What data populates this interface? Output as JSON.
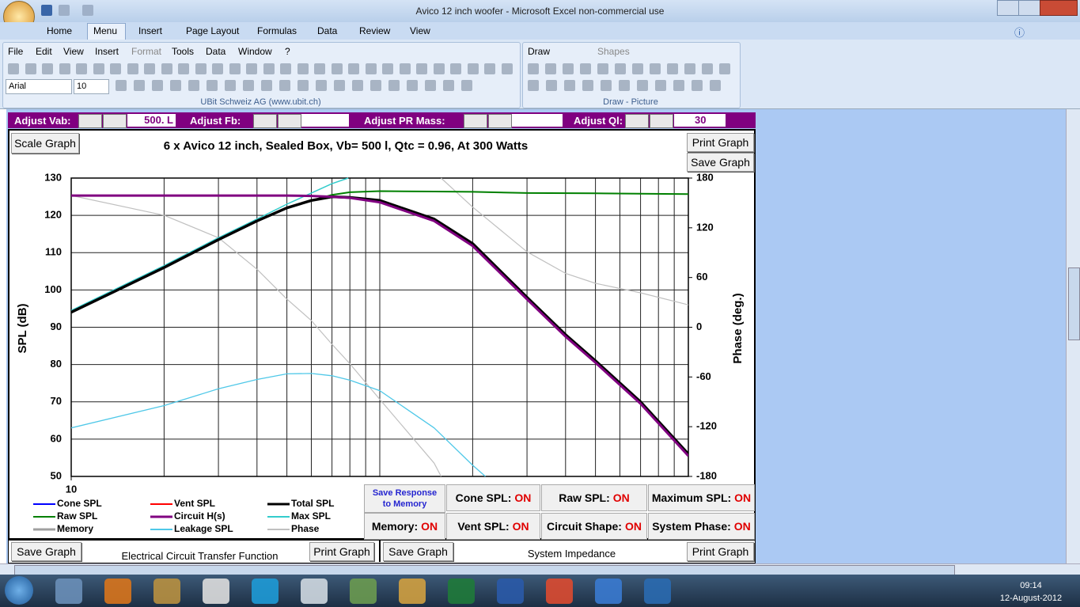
{
  "window": {
    "title": "Avico 12 inch woofer - Microsoft Excel non-commercial use"
  },
  "ribbon": {
    "tabs": [
      "Home",
      "Menu",
      "Insert",
      "Page Layout",
      "Formulas",
      "Data",
      "Review",
      "View"
    ],
    "menus": [
      "File",
      "Edit",
      "View",
      "Insert",
      "Format",
      "Tools",
      "Data",
      "Window",
      "?"
    ],
    "font": "Arial",
    "size": "10",
    "group_label": "UBit Schweiz AG   (www.ubit.ch)",
    "draw": "Draw",
    "shapes": "Shapes",
    "draw_label": "Draw - Picture"
  },
  "controls": {
    "labels": [
      "Adjust Vab:",
      "Adjust Fb:",
      "Adjust PR Mass:",
      "Adjust Ql:"
    ],
    "vab": "500. L",
    "ql": "30"
  },
  "buttons": {
    "scale": "Scale Graph",
    "print": "Print Graph",
    "save": "Save Graph",
    "memory": "Save Response to Memory"
  },
  "toggles": [
    {
      "label": "Cone SPL:",
      "state": "ON"
    },
    {
      "label": "Raw SPL:",
      "state": "ON"
    },
    {
      "label": "Maximum SPL:",
      "state": "ON"
    },
    {
      "label": "Memory:",
      "state": "ON"
    },
    {
      "label": "Vent SPL:",
      "state": "ON"
    },
    {
      "label": "Circuit Shape:",
      "state": "ON"
    },
    {
      "label": "System Phase:",
      "state": "ON"
    }
  ],
  "bottom": {
    "save_left": "Save Graph",
    "circuit": "Electrical Circuit Transfer Function",
    "print_left": "Print Graph",
    "save_right": "Save Graph",
    "impedance": "System Impedance",
    "print_right": "Print Graph"
  },
  "taskbar": {
    "time": "09:14",
    "date": "12-August-2012"
  },
  "chart_data": {
    "type": "line",
    "title": "6 x Avico  12 inch,  Sealed Box, Vb= 500 l,  Qtc = 0.96,  At 300 Watts",
    "y_label": "SPL (dB)",
    "y2_label": "Phase (deg.)",
    "xscale": "log",
    "xlim": [
      10,
      1000
    ],
    "xticks": [
      10
    ],
    "xgrid": [
      20,
      30,
      40,
      50,
      60,
      70,
      80,
      90,
      100,
      200,
      300,
      400,
      500,
      600,
      700,
      800,
      900
    ],
    "ylim": [
      50,
      130
    ],
    "yticks": [
      50,
      60,
      70,
      80,
      90,
      100,
      110,
      120,
      130
    ],
    "y2lim": [
      -180,
      180
    ],
    "y2ticks": [
      -180,
      -120,
      -60,
      0,
      60,
      120,
      180
    ],
    "grid": true,
    "series": [
      {
        "name": "Cone SPL",
        "color": "#0000ff",
        "width": 2,
        "x": [],
        "values": []
      },
      {
        "name": "Vent SPL",
        "color": "#ff0000",
        "width": 2,
        "x": [],
        "values": []
      },
      {
        "name": "Total SPL",
        "color": "#000000",
        "width": 3.5,
        "x": [
          10,
          20,
          30,
          40,
          50,
          60,
          70,
          80,
          100,
          150,
          200,
          300,
          400,
          500,
          700,
          1000
        ],
        "values": [
          94,
          106,
          113.5,
          118.5,
          122,
          124,
          125,
          124.8,
          124,
          119,
          112.4,
          98,
          88,
          81,
          70,
          56
        ]
      },
      {
        "name": "Raw SPL",
        "color": "#008000",
        "width": 2,
        "x": [
          10,
          20,
          30,
          40,
          50,
          60,
          70,
          80,
          100,
          150,
          200,
          300,
          500,
          1000
        ],
        "values": [
          94,
          106,
          113.5,
          118.5,
          122,
          124,
          125.5,
          126.2,
          126.5,
          126.4,
          126.3,
          126,
          125.9,
          125.7
        ]
      },
      {
        "name": "Circuit H(s)",
        "color": "#800080",
        "width": 3,
        "x": [
          10,
          20,
          30,
          40,
          50,
          60,
          70,
          80,
          100,
          150,
          200,
          300,
          400,
          500,
          700,
          1000
        ],
        "values": [
          125.3,
          125.3,
          125.3,
          125.3,
          125.3,
          125.2,
          125,
          124.7,
          123.5,
          118.5,
          111.8,
          97.5,
          87.5,
          80.5,
          69.5,
          55.5
        ]
      },
      {
        "name": "Max SPL",
        "color": "#33cccc",
        "width": 1.5,
        "x": [
          10,
          20,
          30,
          40,
          50,
          60,
          70,
          79
        ],
        "values": [
          94.5,
          106.5,
          114,
          119,
          123,
          126,
          128.5,
          130
        ]
      },
      {
        "name": "Memory",
        "color": "#a0a0a0",
        "width": 3,
        "x": [],
        "values": []
      },
      {
        "name": "Leakage SPL",
        "color": "#4fc8e8",
        "width": 1.3,
        "x": [
          10,
          20,
          30,
          40,
          50,
          60,
          70,
          80,
          100,
          150,
          200,
          220
        ],
        "values": [
          63,
          69,
          73.5,
          76,
          77.5,
          77.6,
          77,
          75.8,
          73,
          63,
          53,
          50
        ]
      },
      {
        "name": "Phase",
        "color": "#c0c0c0",
        "width": 1.2,
        "axis": "y2",
        "x": [
          10,
          20,
          30,
          40,
          50,
          60,
          70,
          80,
          100,
          150,
          158,
          null,
          158,
          200,
          300,
          400,
          500,
          700,
          1000
        ],
        "values": [
          159,
          135,
          108,
          70,
          34,
          8,
          -20.5,
          -44,
          -87,
          -164,
          -180,
          null,
          180,
          145,
          91,
          65,
          53,
          41.5,
          27
        ]
      }
    ]
  }
}
